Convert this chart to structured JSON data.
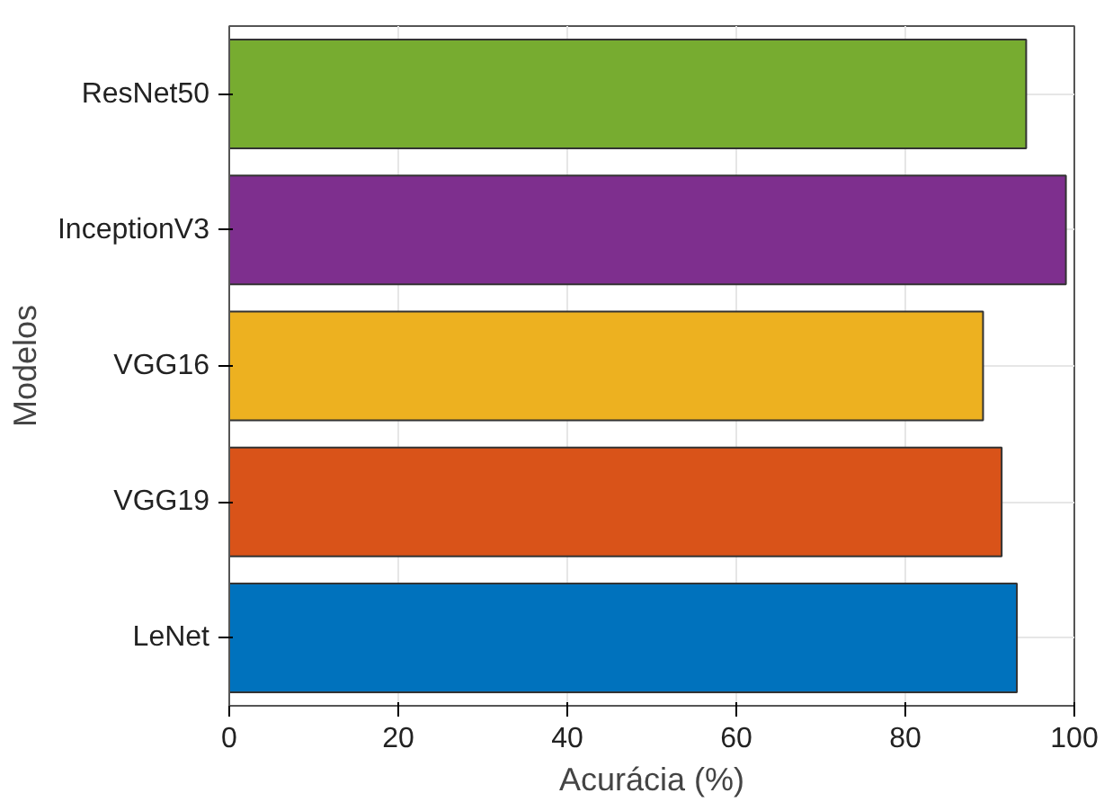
{
  "chart_data": {
    "type": "bar",
    "orientation": "horizontal",
    "xlabel": "Acurácia (%)",
    "ylabel": "Modelos",
    "categories": [
      "ResNet50",
      "InceptionV3",
      "VGG16",
      "VGG19",
      "LeNet"
    ],
    "values": [
      94.3,
      99.0,
      89.2,
      91.4,
      93.2
    ],
    "colors": [
      "#77ac30",
      "#7e2f8e",
      "#edb120",
      "#d95319",
      "#0072bd"
    ],
    "xlim": [
      0,
      100
    ],
    "xticks": [
      0,
      20,
      40,
      60,
      80,
      100
    ],
    "grid": true
  }
}
